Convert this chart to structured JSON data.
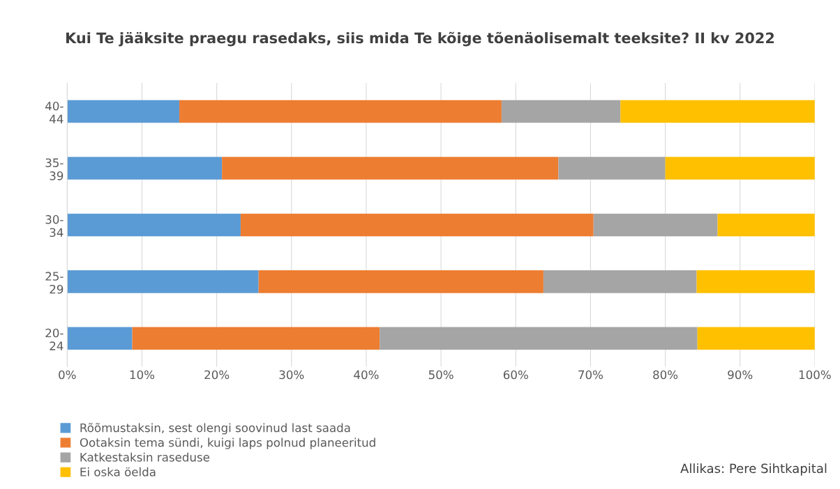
{
  "chart_data": {
    "type": "bar",
    "orientation": "horizontal",
    "stacked": true,
    "title": "Kui Te jääksite praegu rasedaks, siis mida Te kõige tõenäolisemalt teeksite? II kv 2022",
    "categories": [
      "40-44",
      "35-39",
      "30-34",
      "25-29",
      "20-24"
    ],
    "series": [
      {
        "name": "Rõõmustaksin, sest olengi soovinud last saada",
        "color": "#5b9bd5",
        "values": [
          15.0,
          20.7,
          23.2,
          25.6,
          8.7
        ]
      },
      {
        "name": "Ootaksin tema sündi, kuigi laps polnud planeeritud",
        "color": "#ed7d31",
        "values": [
          43.1,
          45.0,
          47.2,
          38.1,
          33.1
        ]
      },
      {
        "name": "Katkestaksin raseduse",
        "color": "#a5a5a5",
        "values": [
          15.9,
          14.3,
          16.6,
          20.5,
          42.5
        ]
      },
      {
        "name": "Ei oska öelda",
        "color": "#ffc000",
        "values": [
          26.0,
          20.0,
          13.0,
          15.8,
          15.7
        ]
      }
    ],
    "xlim": [
      0,
      100
    ],
    "xticks": [
      {
        "value": 0,
        "label": "0%"
      },
      {
        "value": 10,
        "label": "10%"
      },
      {
        "value": 20,
        "label": "20%"
      },
      {
        "value": 30,
        "label": "30%"
      },
      {
        "value": 40,
        "label": "40%"
      },
      {
        "value": 50,
        "label": "50%"
      },
      {
        "value": 60,
        "label": "60%"
      },
      {
        "value": 70,
        "label": "70%"
      },
      {
        "value": 80,
        "label": "80%"
      },
      {
        "value": 90,
        "label": "90%"
      },
      {
        "value": 100,
        "label": "100%"
      }
    ],
    "grid": "x",
    "legend": "bottom left",
    "annotations": [
      "Allikas: Pere Sihtkapital"
    ]
  }
}
